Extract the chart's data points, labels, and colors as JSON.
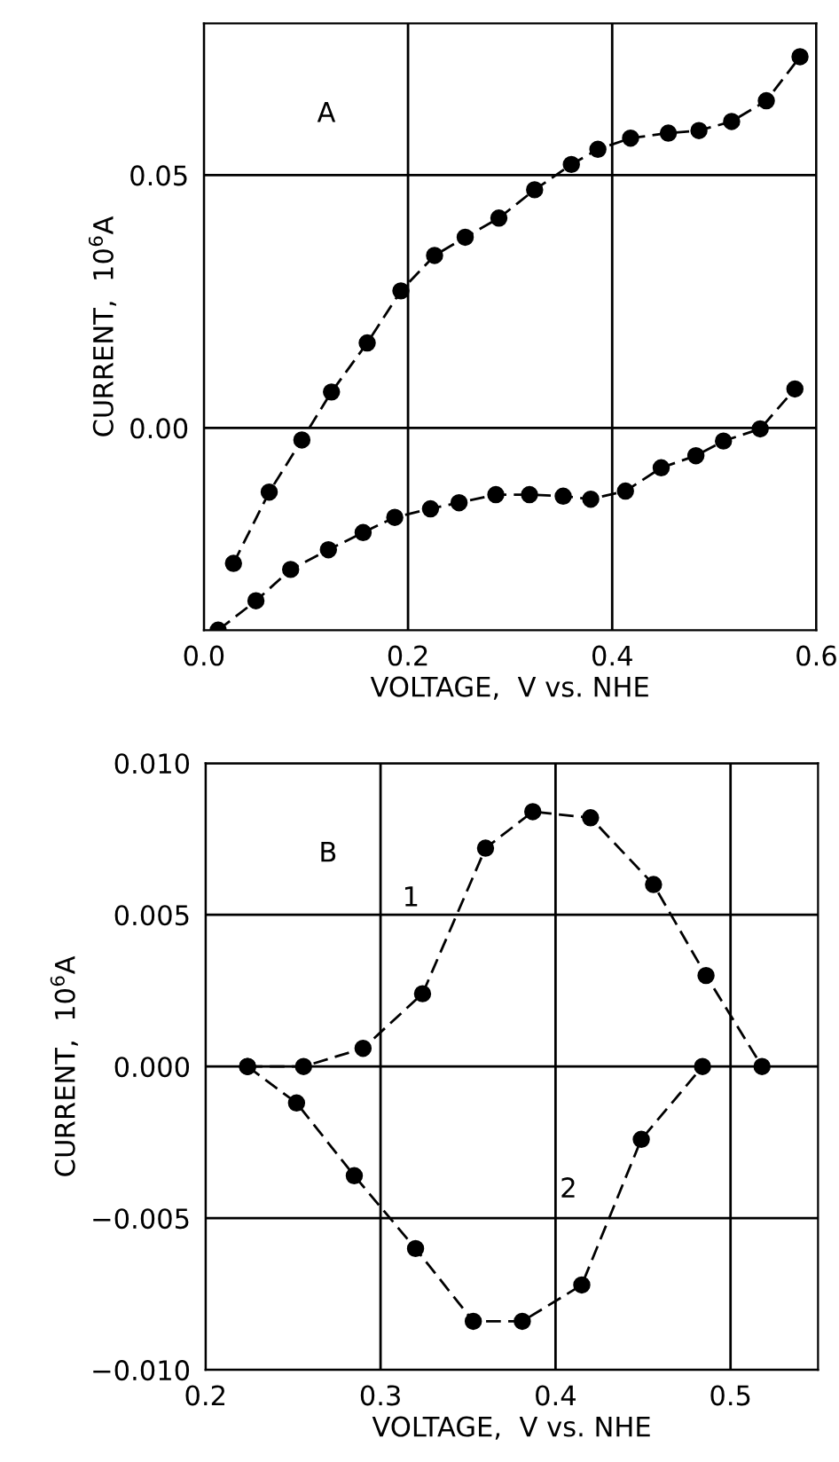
{
  "chart_data": [
    {
      "type": "line",
      "annotations": [
        "A"
      ],
      "xlabel": "VOLTAGE,  V vs. NHE",
      "ylabel": "CURRENT,  10$^{6}$A",
      "xlim": [
        0,
        0.6
      ],
      "ylim": [
        -0.04,
        0.08
      ],
      "xticks": [
        {
          "value": 0,
          "label": "0.0"
        },
        {
          "value": 0.2,
          "label": "0.2"
        },
        {
          "value": 0.4,
          "label": "0.4"
        },
        {
          "value": 0.6,
          "label": "0.6"
        }
      ],
      "yticks": [
        {
          "value": 0,
          "label": "0.00"
        },
        {
          "value": 0.05,
          "label": "0.05"
        }
      ],
      "grid": true,
      "marker": "circle",
      "line_style": "dashed",
      "series": [
        {
          "color": "#000000",
          "x": [
            0.029,
            0.064,
            0.096,
            0.125,
            0.16,
            0.193,
            0.226,
            0.256,
            0.289,
            0.324,
            0.36,
            0.386,
            0.418,
            0.455,
            0.485,
            0.517,
            0.551,
            0.584
          ],
          "values": [
            -0.0268,
            -0.0127,
            -0.0024,
            0.0071,
            0.0168,
            0.0271,
            0.0341,
            0.0377,
            0.0415,
            0.0471,
            0.0521,
            0.0551,
            0.0573,
            0.0583,
            0.0588,
            0.0606,
            0.0647,
            0.0734
          ]
        },
        {
          "color": "#000000",
          "x": [
            0.014,
            0.051,
            0.085,
            0.122,
            0.156,
            0.187,
            0.222,
            0.25,
            0.286,
            0.319,
            0.352,
            0.379,
            0.413,
            0.448,
            0.482,
            0.509,
            0.545,
            0.579
          ],
          "values": [
            -0.04,
            -0.0342,
            -0.028,
            -0.0241,
            -0.0207,
            -0.0177,
            -0.016,
            -0.0148,
            -0.0132,
            -0.0132,
            -0.0135,
            -0.0141,
            -0.0125,
            -0.0079,
            -0.0055,
            -0.0026,
            -0.0002,
            0.0077
          ]
        }
      ]
    },
    {
      "type": "line",
      "annotations": [
        "B"
      ],
      "xlabel": "VOLTAGE,  V vs. NHE",
      "ylabel": "CURRENT,  10$^{6}$A",
      "xlim": [
        0.2,
        0.55
      ],
      "ylim": [
        -0.01,
        0.01
      ],
      "xticks": [
        {
          "value": 0.2,
          "label": "0.2"
        },
        {
          "value": 0.3,
          "label": "0.3"
        },
        {
          "value": 0.4,
          "label": "0.4"
        },
        {
          "value": 0.5,
          "label": "0.5"
        }
      ],
      "yticks": [
        {
          "value": -0.01,
          "label": "−0.010"
        },
        {
          "value": -0.005,
          "label": "−0.005"
        },
        {
          "value": 0,
          "label": "0.000"
        },
        {
          "value": 0.005,
          "label": "0.005"
        },
        {
          "value": 0.01,
          "label": "0.010"
        }
      ],
      "grid": true,
      "marker": "circle",
      "line_style": "dashed",
      "series": [
        {
          "name": "1",
          "color": "#000000",
          "x": [
            0.224,
            0.256,
            0.29,
            0.324,
            0.36,
            0.387,
            0.42,
            0.456,
            0.486,
            0.518
          ],
          "values": [
            0,
            0,
            0.0006,
            0.0024,
            0.0072,
            0.0084,
            0.0082,
            0.006,
            0.003,
            0
          ]
        },
        {
          "name": "2",
          "color": "#000000",
          "x": [
            0.224,
            0.252,
            0.285,
            0.32,
            0.353,
            0.381,
            0.415,
            0.449,
            0.484
          ],
          "values": [
            0,
            -0.0012,
            -0.0036,
            -0.006,
            -0.0084,
            -0.0084,
            -0.0072,
            -0.0024,
            0
          ]
        }
      ]
    }
  ]
}
